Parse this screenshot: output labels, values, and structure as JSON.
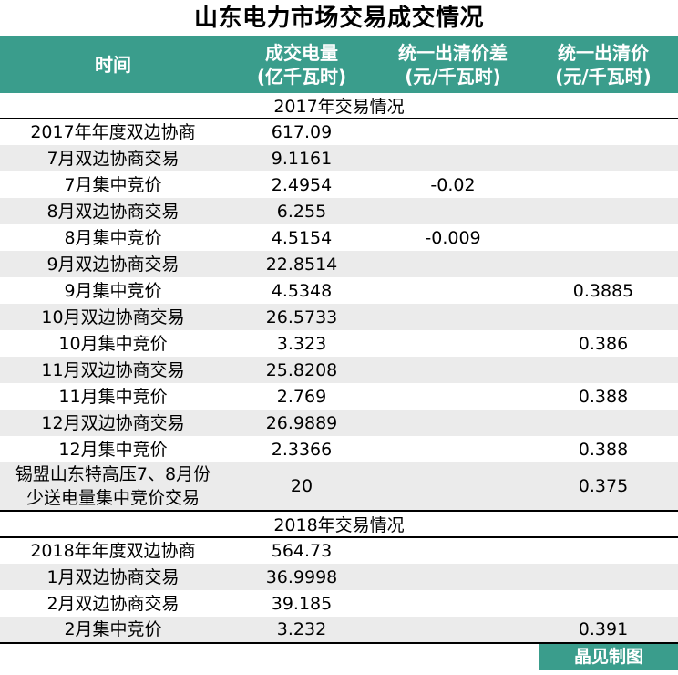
{
  "title": "山东电力市场交易成交情况",
  "credit": "晶见制图",
  "colors": {
    "accent": "#3A9D8C",
    "stripe": "#EBEBEB",
    "header_text": "#FFFFFF",
    "text": "#000000"
  },
  "chart_data": {
    "type": "table",
    "title": "山东电力市场交易成交情况",
    "columns": [
      {
        "line1": "时间",
        "line2": ""
      },
      {
        "line1": "成交电量",
        "line2": "(亿千瓦时)"
      },
      {
        "line1": "统一出清价差",
        "line2": "(元/千瓦时)"
      },
      {
        "line1": "统一出清价",
        "line2": "(元/千瓦时)"
      }
    ],
    "sections": [
      {
        "label": "2017年交易情况",
        "rows": [
          {
            "time": "2017年年度双边协商",
            "volume": "617.09",
            "price_diff": "",
            "clearing_price": ""
          },
          {
            "time": "7月双边协商交易",
            "volume": "9.1161",
            "price_diff": "",
            "clearing_price": ""
          },
          {
            "time": "7月集中竞价",
            "volume": "2.4954",
            "price_diff": "-0.02",
            "clearing_price": ""
          },
          {
            "time": "8月双边协商交易",
            "volume": "6.255",
            "price_diff": "",
            "clearing_price": ""
          },
          {
            "time": "8月集中竞价",
            "volume": "4.5154",
            "price_diff": "-0.009",
            "clearing_price": ""
          },
          {
            "time": "9月双边协商交易",
            "volume": "22.8514",
            "price_diff": "",
            "clearing_price": ""
          },
          {
            "time": "9月集中竞价",
            "volume": "4.5348",
            "price_diff": "",
            "clearing_price": "0.3885"
          },
          {
            "time": "10月双边协商交易",
            "volume": "26.5733",
            "price_diff": "",
            "clearing_price": ""
          },
          {
            "time": "10月集中竞价",
            "volume": "3.323",
            "price_diff": "",
            "clearing_price": "0.386"
          },
          {
            "time": "11月双边协商交易",
            "volume": "25.8208",
            "price_diff": "",
            "clearing_price": ""
          },
          {
            "time": "11月集中竞价",
            "volume": "2.769",
            "price_diff": "",
            "clearing_price": "0.388"
          },
          {
            "time": "12月双边协商交易",
            "volume": "26.9889",
            "price_diff": "",
            "clearing_price": ""
          },
          {
            "time": "12月集中竞价",
            "volume": "2.3366",
            "price_diff": "",
            "clearing_price": "0.388"
          },
          {
            "time": "锡盟山东特高压7、8月份\n少送电量集中竞价交易",
            "volume": "20",
            "price_diff": "",
            "clearing_price": "0.375"
          }
        ]
      },
      {
        "label": "2018年交易情况",
        "rows": [
          {
            "time": "2018年年度双边协商",
            "volume": "564.73",
            "price_diff": "",
            "clearing_price": ""
          },
          {
            "time": "1月双边协商交易",
            "volume": "36.9998",
            "price_diff": "",
            "clearing_price": ""
          },
          {
            "time": "2月双边协商交易",
            "volume": "39.185",
            "price_diff": "",
            "clearing_price": ""
          },
          {
            "time": "2月集中竞价",
            "volume": "3.232",
            "price_diff": "",
            "clearing_price": "0.391"
          }
        ]
      }
    ]
  }
}
